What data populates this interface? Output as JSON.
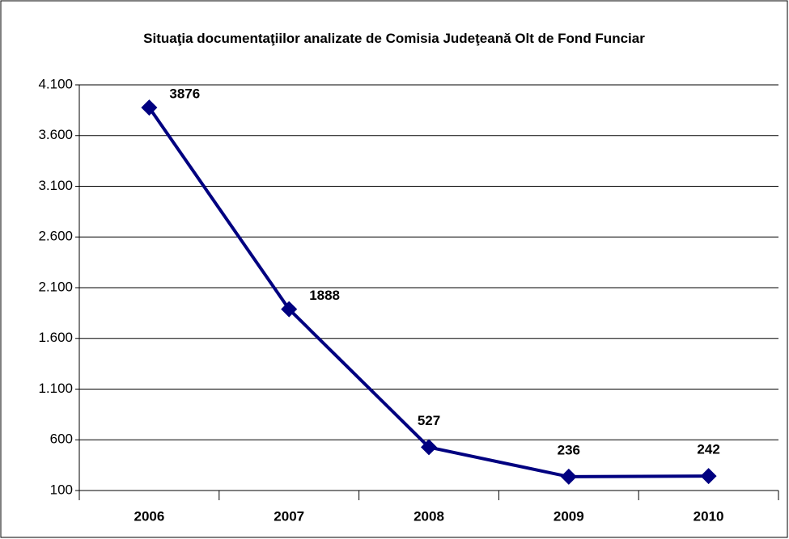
{
  "chart_data": {
    "type": "line",
    "title": "Situaţia documentaţiilor analizate de Comisia Judeţeană Olt de Fond Funciar",
    "categories": [
      "2006",
      "2007",
      "2008",
      "2009",
      "2010"
    ],
    "series": [
      {
        "color": "#000080",
        "values": [
          3876,
          1888,
          527,
          236,
          242
        ]
      }
    ],
    "ylim": [
      100,
      4100
    ],
    "yticks": [
      100,
      600,
      {
        "value": 1100,
        "label": "1.100"
      },
      {
        "value": 1600,
        "label": "1.600"
      },
      {
        "value": 2100,
        "label": "2.100"
      },
      {
        "value": 2600,
        "label": "2.600"
      },
      {
        "value": 3100,
        "label": "3.100"
      },
      {
        "value": 3600,
        "label": "3.600"
      },
      {
        "value": 4100,
        "label": "4.100"
      }
    ],
    "grid": true
  }
}
